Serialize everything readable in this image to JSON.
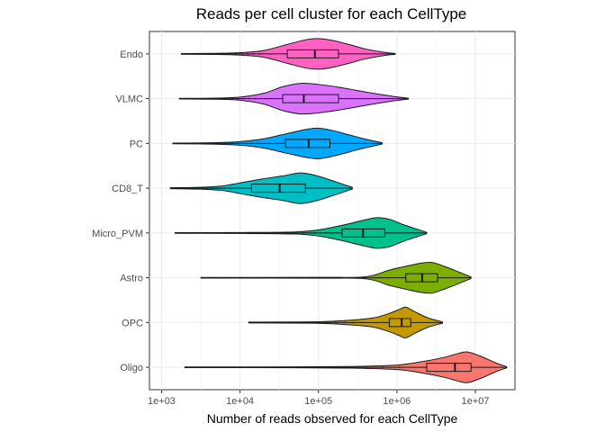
{
  "chart_data": {
    "type": "violin",
    "title": "Reads per cell cluster for each CellType",
    "xlabel": "Number of reads observed for each CellType",
    "ylabel": "",
    "x_scale": "log10",
    "xlim": [
      700,
      32000000
    ],
    "x_ticks": [
      1000,
      10000,
      100000,
      1000000,
      10000000
    ],
    "x_tick_labels": [
      "1e+03",
      "1e+04",
      "1e+05",
      "1e+06",
      "1e+07"
    ],
    "grid": true,
    "legend": "none",
    "categories": [
      "Endo",
      "VLMC",
      "PC",
      "CD8_T",
      "Micro_PVM",
      "Astro",
      "OPC",
      "Oligo"
    ],
    "series": [
      {
        "category": "Endo",
        "color": "#FF61C3",
        "min": 1800,
        "q1": 40000,
        "median": 90000,
        "q3": 180000,
        "max": 950000,
        "density": [
          [
            1800,
            0.02
          ],
          [
            5000,
            0.04
          ],
          [
            10000,
            0.08
          ],
          [
            20000,
            0.22
          ],
          [
            40000,
            0.62
          ],
          [
            70000,
            0.93
          ],
          [
            100000,
            1.0
          ],
          [
            150000,
            0.88
          ],
          [
            250000,
            0.6
          ],
          [
            400000,
            0.32
          ],
          [
            700000,
            0.1
          ],
          [
            950000,
            0.03
          ]
        ]
      },
      {
        "category": "VLMC",
        "color": "#DB72FB",
        "min": 1700,
        "q1": 35000,
        "median": 65000,
        "q3": 180000,
        "max": 1400000,
        "density": [
          [
            1700,
            0.02
          ],
          [
            5000,
            0.04
          ],
          [
            10000,
            0.1
          ],
          [
            20000,
            0.35
          ],
          [
            35000,
            0.78
          ],
          [
            60000,
            1.0
          ],
          [
            100000,
            0.93
          ],
          [
            180000,
            0.75
          ],
          [
            300000,
            0.55
          ],
          [
            500000,
            0.35
          ],
          [
            900000,
            0.15
          ],
          [
            1400000,
            0.03
          ]
        ]
      },
      {
        "category": "PC",
        "color": "#00A9FF",
        "min": 1400,
        "q1": 38000,
        "median": 75000,
        "q3": 140000,
        "max": 650000,
        "density": [
          [
            1400,
            0.02
          ],
          [
            5000,
            0.05
          ],
          [
            10000,
            0.12
          ],
          [
            20000,
            0.3
          ],
          [
            40000,
            0.65
          ],
          [
            70000,
            0.92
          ],
          [
            100000,
            1.0
          ],
          [
            150000,
            0.85
          ],
          [
            250000,
            0.55
          ],
          [
            400000,
            0.28
          ],
          [
            650000,
            0.04
          ]
        ]
      },
      {
        "category": "CD8_T",
        "color": "#00BFC4",
        "min": 1300,
        "q1": 14000,
        "median": 32000,
        "q3": 68000,
        "max": 270000,
        "density": [
          [
            1300,
            0.03
          ],
          [
            3000,
            0.06
          ],
          [
            6000,
            0.15
          ],
          [
            10000,
            0.35
          ],
          [
            20000,
            0.62
          ],
          [
            35000,
            0.8
          ],
          [
            60000,
            1.0
          ],
          [
            100000,
            0.78
          ],
          [
            170000,
            0.4
          ],
          [
            270000,
            0.05
          ]
        ]
      },
      {
        "category": "Micro_PVM",
        "color": "#00C08B",
        "min": 1500,
        "q1": 200000,
        "median": 370000,
        "q3": 700000,
        "max": 2400000,
        "density": [
          [
            1500,
            0.02
          ],
          [
            10000,
            0.03
          ],
          [
            50000,
            0.07
          ],
          [
            100000,
            0.2
          ],
          [
            200000,
            0.5
          ],
          [
            350000,
            0.8
          ],
          [
            550000,
            1.0
          ],
          [
            800000,
            0.9
          ],
          [
            1200000,
            0.55
          ],
          [
            1800000,
            0.25
          ],
          [
            2400000,
            0.04
          ]
        ]
      },
      {
        "category": "Astro",
        "color": "#7CAE00",
        "min": 3200,
        "q1": 1300000,
        "median": 2100000,
        "q3": 3300000,
        "max": 8800000,
        "density": [
          [
            3200,
            0.02
          ],
          [
            100000,
            0.03
          ],
          [
            400000,
            0.07
          ],
          [
            800000,
            0.5
          ],
          [
            1300000,
            0.75
          ],
          [
            2000000,
            0.95
          ],
          [
            2800000,
            1.0
          ],
          [
            4000000,
            0.75
          ],
          [
            6000000,
            0.4
          ],
          [
            8800000,
            0.05
          ]
        ]
      },
      {
        "category": "OPC",
        "color": "#C49A00",
        "min": 13000,
        "q1": 800000,
        "median": 1150000,
        "q3": 1500000,
        "max": 3800000,
        "density": [
          [
            13000,
            0.03
          ],
          [
            100000,
            0.05
          ],
          [
            250000,
            0.15
          ],
          [
            500000,
            0.3
          ],
          [
            800000,
            0.6
          ],
          [
            1100000,
            0.88
          ],
          [
            1300000,
            1.0
          ],
          [
            1700000,
            0.7
          ],
          [
            2500000,
            0.3
          ],
          [
            3800000,
            0.05
          ]
        ]
      },
      {
        "category": "Oligo",
        "color": "#F8766D",
        "min": 2000,
        "q1": 2400000,
        "median": 5500000,
        "q3": 8800000,
        "max": 25000000,
        "density": [
          [
            2000,
            0.02
          ],
          [
            50000,
            0.03
          ],
          [
            300000,
            0.06
          ],
          [
            1000000,
            0.15
          ],
          [
            2000000,
            0.35
          ],
          [
            4000000,
            0.65
          ],
          [
            6000000,
            0.9
          ],
          [
            8000000,
            1.0
          ],
          [
            12000000,
            0.7
          ],
          [
            18000000,
            0.3
          ],
          [
            25000000,
            0.04
          ]
        ]
      }
    ]
  }
}
